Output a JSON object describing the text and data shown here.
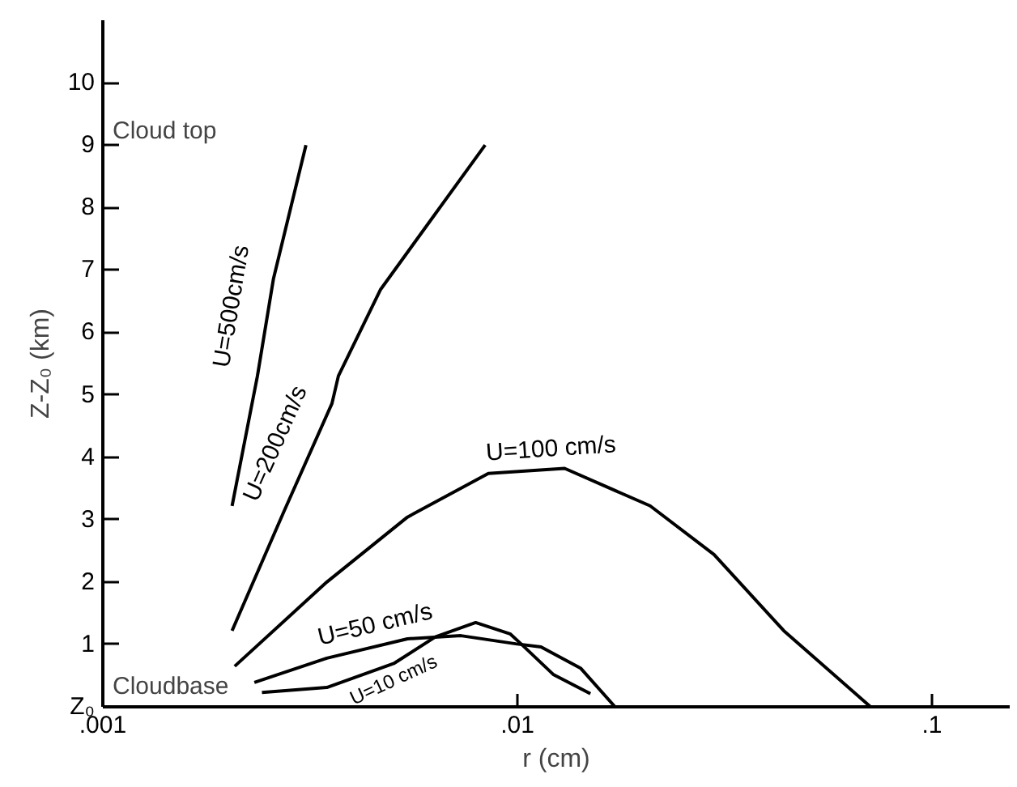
{
  "chart_data": {
    "type": "line",
    "xlabel": "r (cm)",
    "ylabel": "Z-Z₀ (km)",
    "log": "x",
    "xlim": [
      0.001,
      0.154
    ],
    "ylim": [
      0,
      11
    ],
    "xticks": [
      {
        "value": 0.001,
        "label": ".001"
      },
      {
        "value": 0.01,
        "label": ".01"
      },
      {
        "value": 0.1,
        "label": ".1"
      }
    ],
    "yticks": [
      {
        "value": 0,
        "label": "Z₀"
      },
      1,
      2,
      3,
      4,
      5,
      6,
      7,
      8,
      9,
      10
    ],
    "grid": false,
    "marker": "none",
    "line_style": "solid",
    "series": [
      {
        "name": "U=500cm/s",
        "color": "#000000",
        "x": [
          0.00205,
          0.00236,
          0.00258,
          0.00309
        ],
        "values": [
          3.22,
          5.3,
          6.86,
          9.0
        ]
      },
      {
        "name": "U=200cm/s",
        "color": "#000000",
        "x": [
          0.00205,
          0.00273,
          0.00357,
          0.0037,
          0.00467,
          0.00634,
          0.00836
        ],
        "values": [
          1.22,
          3.12,
          4.86,
          5.3,
          6.68,
          7.9,
          9.0
        ]
      },
      {
        "name": "U=100 cm/s",
        "color": "#000000",
        "x": [
          0.00208,
          0.00347,
          0.00543,
          0.00851,
          0.013,
          0.0209,
          0.0298,
          0.0439,
          0.0711
        ],
        "values": [
          0.65,
          2.0,
          3.04,
          3.74,
          3.82,
          3.22,
          2.44,
          1.22,
          0
        ]
      },
      {
        "name": "U=50 cm/s",
        "color": "#000000",
        "x": [
          0.00232,
          0.00347,
          0.00543,
          0.00731,
          0.0099,
          0.0114,
          0.0142,
          0.0172
        ],
        "values": [
          0.39,
          0.78,
          1.09,
          1.14,
          1.01,
          0.96,
          0.62,
          0
        ]
      },
      {
        "name": "U=10 cm/s",
        "color": "#000000",
        "x": [
          0.00242,
          0.00347,
          0.00505,
          0.00634,
          0.00793,
          0.0096,
          0.0102,
          0.0122,
          0.015
        ],
        "values": [
          0.23,
          0.31,
          0.7,
          1.12,
          1.35,
          1.17,
          1.01,
          0.52,
          0.21
        ]
      }
    ],
    "annotations": [
      "Cloud top",
      "Cloudbase"
    ]
  }
}
